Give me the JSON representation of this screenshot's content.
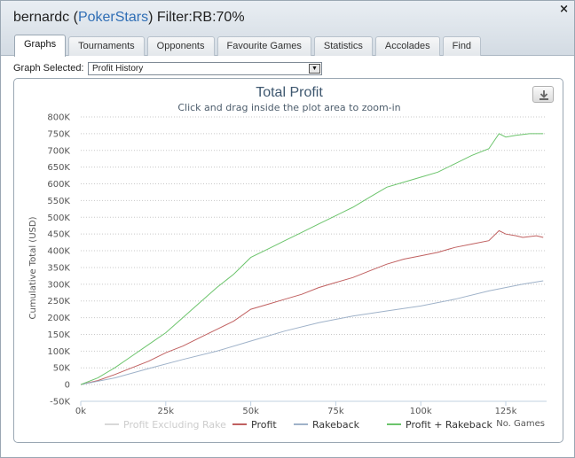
{
  "window": {
    "title_user": "bernardc",
    "title_site": "PokerStars",
    "title_filter": "Filter:RB:70%",
    "close_label": "×"
  },
  "tabs": [
    {
      "label": "Graphs",
      "active": true
    },
    {
      "label": "Tournaments",
      "active": false
    },
    {
      "label": "Opponents",
      "active": false
    },
    {
      "label": "Favourite Games",
      "active": false
    },
    {
      "label": "Statistics",
      "active": false
    },
    {
      "label": "Accolades",
      "active": false
    },
    {
      "label": "Find",
      "active": false
    }
  ],
  "graph_select": {
    "label": "Graph Selected:",
    "value": "Profit History",
    "arrow": "▼"
  },
  "colors": {
    "profit_excluding_rake": "#d8d8d8",
    "profit": "#c06060",
    "rakeback": "#9fb2c9",
    "profit_plus_rakeback": "#6cc46c",
    "title": "#3e576f"
  },
  "chart_data": {
    "type": "line",
    "title": "Total Profit",
    "subtitle": "Click and drag inside the plot area to zoom-in",
    "ylabel": "Cumulative Total (USD)",
    "xlabel": "No. Games",
    "xlim": [
      0,
      137000
    ],
    "ylim": [
      -50000,
      800000
    ],
    "x_ticks": [
      {
        "value": 0,
        "label": "0k"
      },
      {
        "value": 25000,
        "label": "25k"
      },
      {
        "value": 50000,
        "label": "50k"
      },
      {
        "value": 75000,
        "label": "75k"
      },
      {
        "value": 100000,
        "label": "100k"
      },
      {
        "value": 125000,
        "label": "125k"
      }
    ],
    "y_ticks": [
      {
        "value": 800000,
        "label": "800K"
      },
      {
        "value": 750000,
        "label": "750K"
      },
      {
        "value": 700000,
        "label": "700K"
      },
      {
        "value": 650000,
        "label": "650K"
      },
      {
        "value": 600000,
        "label": "600K"
      },
      {
        "value": 550000,
        "label": "550K"
      },
      {
        "value": 500000,
        "label": "500K"
      },
      {
        "value": 450000,
        "label": "450K"
      },
      {
        "value": 400000,
        "label": "400K"
      },
      {
        "value": 350000,
        "label": "350K"
      },
      {
        "value": 300000,
        "label": "300K"
      },
      {
        "value": 250000,
        "label": "250K"
      },
      {
        "value": 200000,
        "label": "200K"
      },
      {
        "value": 150000,
        "label": "150K"
      },
      {
        "value": 100000,
        "label": "100K"
      },
      {
        "value": 50000,
        "label": "50K"
      },
      {
        "value": 0,
        "label": "0"
      },
      {
        "value": -50000,
        "label": "-50K"
      }
    ],
    "grid": "horizontal dotted",
    "legend_position": "bottom",
    "series": [
      {
        "name": "Profit Excluding Rake",
        "color_key": "profit_excluding_rake",
        "visible": false,
        "points": []
      },
      {
        "name": "Profit",
        "color_key": "profit",
        "visible": true,
        "points": [
          [
            0,
            0
          ],
          [
            5000,
            12000
          ],
          [
            10000,
            30000
          ],
          [
            15000,
            50000
          ],
          [
            20000,
            70000
          ],
          [
            25000,
            95000
          ],
          [
            30000,
            115000
          ],
          [
            35000,
            140000
          ],
          [
            40000,
            165000
          ],
          [
            45000,
            190000
          ],
          [
            50000,
            225000
          ],
          [
            55000,
            240000
          ],
          [
            60000,
            255000
          ],
          [
            65000,
            270000
          ],
          [
            70000,
            290000
          ],
          [
            75000,
            305000
          ],
          [
            80000,
            320000
          ],
          [
            85000,
            340000
          ],
          [
            90000,
            360000
          ],
          [
            95000,
            375000
          ],
          [
            100000,
            385000
          ],
          [
            105000,
            395000
          ],
          [
            110000,
            410000
          ],
          [
            115000,
            420000
          ],
          [
            120000,
            430000
          ],
          [
            123000,
            460000
          ],
          [
            125000,
            450000
          ],
          [
            128000,
            445000
          ],
          [
            130000,
            440000
          ],
          [
            134000,
            445000
          ],
          [
            136000,
            440000
          ]
        ]
      },
      {
        "name": "Rakeback",
        "color_key": "rakeback",
        "visible": true,
        "points": [
          [
            0,
            0
          ],
          [
            10000,
            20000
          ],
          [
            20000,
            48000
          ],
          [
            30000,
            75000
          ],
          [
            40000,
            100000
          ],
          [
            50000,
            130000
          ],
          [
            60000,
            160000
          ],
          [
            70000,
            185000
          ],
          [
            80000,
            205000
          ],
          [
            90000,
            220000
          ],
          [
            100000,
            235000
          ],
          [
            110000,
            255000
          ],
          [
            120000,
            280000
          ],
          [
            130000,
            300000
          ],
          [
            136000,
            310000
          ]
        ]
      },
      {
        "name": "Profit + Rakeback",
        "color_key": "profit_plus_rakeback",
        "visible": true,
        "points": [
          [
            0,
            0
          ],
          [
            5000,
            20000
          ],
          [
            10000,
            50000
          ],
          [
            15000,
            85000
          ],
          [
            20000,
            120000
          ],
          [
            25000,
            155000
          ],
          [
            30000,
            200000
          ],
          [
            35000,
            245000
          ],
          [
            40000,
            290000
          ],
          [
            45000,
            330000
          ],
          [
            50000,
            380000
          ],
          [
            55000,
            405000
          ],
          [
            60000,
            430000
          ],
          [
            65000,
            455000
          ],
          [
            70000,
            480000
          ],
          [
            75000,
            505000
          ],
          [
            80000,
            530000
          ],
          [
            85000,
            560000
          ],
          [
            90000,
            590000
          ],
          [
            95000,
            605000
          ],
          [
            100000,
            620000
          ],
          [
            105000,
            635000
          ],
          [
            110000,
            660000
          ],
          [
            115000,
            685000
          ],
          [
            120000,
            705000
          ],
          [
            123000,
            750000
          ],
          [
            125000,
            740000
          ],
          [
            128000,
            745000
          ],
          [
            132000,
            750000
          ],
          [
            136000,
            750000
          ]
        ]
      }
    ]
  }
}
